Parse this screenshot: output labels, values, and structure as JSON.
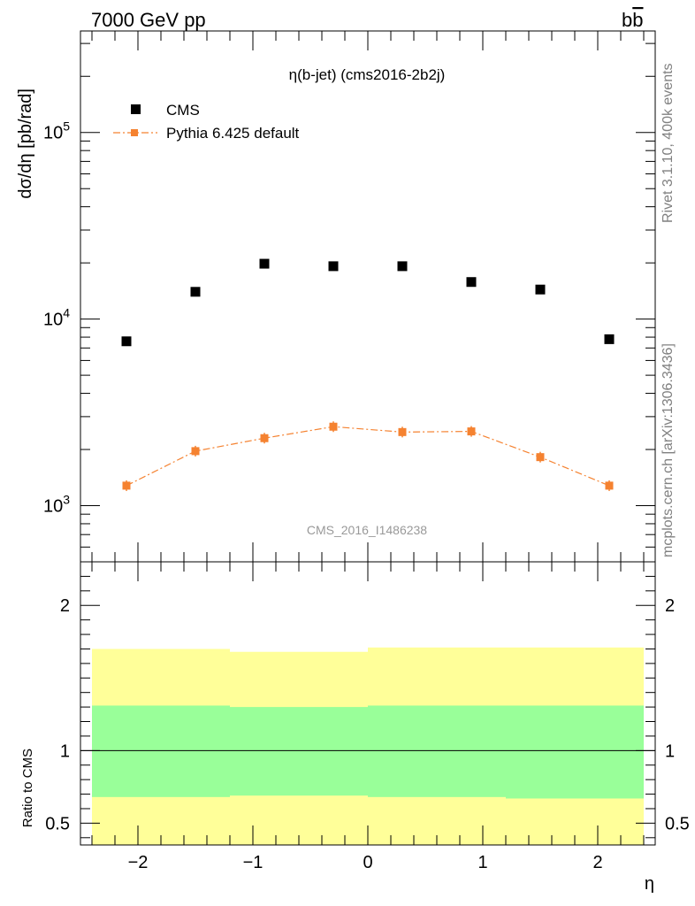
{
  "header": {
    "left": "7000 GeV pp",
    "right_main": "b",
    "right_bar": "b"
  },
  "side_labels": {
    "top": "Rivet 3.1.10,  400k events",
    "bottom": "mcplots.cern.ch [arXiv:1306.3436]"
  },
  "watermark": "CMS_2016_I1486238",
  "chart_data": [
    {
      "type": "scatter",
      "title": "η(b-jet) (cms2016-2b2j)",
      "ylabel": "dσ/dη [pb/rad]",
      "yscale": "log",
      "xlim": [
        -2.5,
        2.5
      ],
      "ylim": [
        500,
        350000
      ],
      "yticks": [
        "10^3",
        "10^4",
        "10^5"
      ],
      "legend_position": "top-left",
      "series": [
        {
          "name": "CMS",
          "color": "#000000",
          "marker": "square",
          "x": [
            -2.1,
            -1.5,
            -0.9,
            -0.3,
            0.3,
            0.9,
            1.5,
            2.1
          ],
          "y": [
            7600,
            14000,
            19800,
            19200,
            19200,
            15800,
            14400,
            7800
          ]
        },
        {
          "name": "Pythia 6.425 default",
          "color": "#f58230",
          "marker": "square-line",
          "x": [
            -2.1,
            -1.5,
            -0.9,
            -0.3,
            0.3,
            0.9,
            1.5,
            2.1
          ],
          "y": [
            1280,
            1960,
            2300,
            2650,
            2480,
            2500,
            1820,
            1280
          ]
        }
      ]
    },
    {
      "type": "area",
      "ylabel": "Ratio to CMS",
      "xlabel": "η",
      "xlim": [
        -2.5,
        2.5
      ],
      "ylim": [
        0.35,
        2.3
      ],
      "xticks": [
        -2,
        -1,
        0,
        1,
        2
      ],
      "yticks": [
        0.5,
        1,
        2
      ],
      "reference_line": 1,
      "bands": {
        "edges": [
          -2.4,
          -1.2,
          0,
          1.2,
          2.4
        ],
        "outer_color": "#ffff99",
        "inner_color": "#99ff99",
        "outer_low": [
          0.35,
          0.35,
          0.35,
          0.35
        ],
        "outer_high": [
          1.7,
          1.68,
          1.71,
          1.71
        ],
        "inner_low": [
          0.68,
          0.69,
          0.68,
          0.67
        ],
        "inner_high": [
          1.31,
          1.3,
          1.31,
          1.31
        ]
      }
    }
  ]
}
